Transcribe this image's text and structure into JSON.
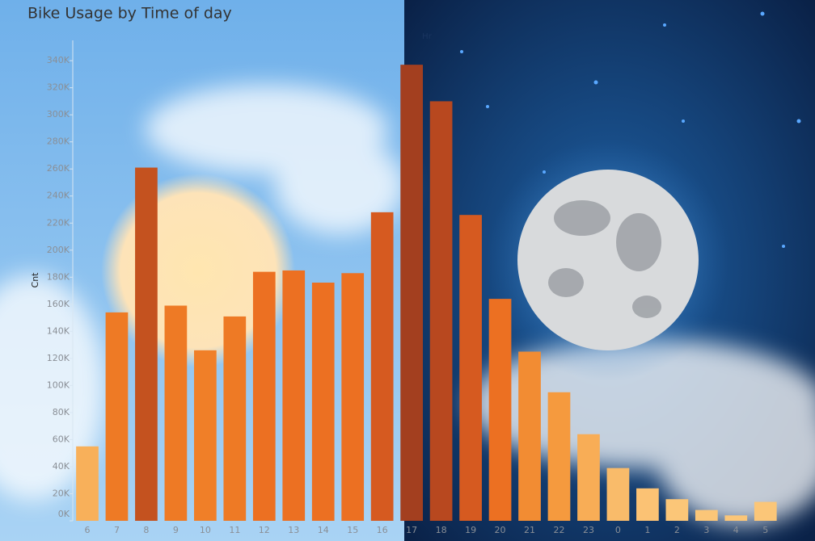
{
  "chart_data": {
    "type": "bar",
    "title": "Bike Usage by  Time of day",
    "x_label": "Hr",
    "y_label": "Cnt",
    "categories": [
      "6",
      "7",
      "8",
      "9",
      "10",
      "11",
      "12",
      "13",
      "14",
      "15",
      "16",
      "17",
      "18",
      "19",
      "20",
      "21",
      "22",
      "23",
      "0",
      "1",
      "2",
      "3",
      "4",
      "5"
    ],
    "values": [
      55000,
      154000,
      261000,
      159000,
      126000,
      151000,
      184000,
      185000,
      176000,
      183000,
      228000,
      337000,
      310000,
      226000,
      164000,
      125000,
      95000,
      64000,
      39000,
      24000,
      16000,
      8000,
      4000,
      14000
    ],
    "colors": [
      "#f8b05a",
      "#ee7a25",
      "#c4521f",
      "#ee7a25",
      "#f07f28",
      "#ee7a25",
      "#ec7022",
      "#ec7022",
      "#ec7022",
      "#ec7022",
      "#d65a20",
      "#a33f1f",
      "#b8481f",
      "#d65a20",
      "#ec7022",
      "#f28c33",
      "#f59a3e",
      "#f8ad56",
      "#f9bb6a",
      "#fbc274",
      "#fbc678",
      "#fbc678",
      "#fbc678",
      "#fbc678"
    ],
    "ylim": [
      0,
      355000
    ],
    "yticks": [
      {
        "value": 0,
        "label": "0K"
      },
      {
        "value": 20000,
        "label": "20K"
      },
      {
        "value": 40000,
        "label": "40K"
      },
      {
        "value": 60000,
        "label": "60K"
      },
      {
        "value": 80000,
        "label": "80K"
      },
      {
        "value": 100000,
        "label": "100K"
      },
      {
        "value": 120000,
        "label": "120K"
      },
      {
        "value": 140000,
        "label": "140K"
      },
      {
        "value": 160000,
        "label": "160K"
      },
      {
        "value": 180000,
        "label": "180K"
      },
      {
        "value": 200000,
        "label": "200K"
      },
      {
        "value": 220000,
        "label": "220K"
      },
      {
        "value": 240000,
        "label": "240K"
      },
      {
        "value": 260000,
        "label": "260K"
      },
      {
        "value": 280000,
        "label": "280K"
      },
      {
        "value": 300000,
        "label": "300K"
      },
      {
        "value": 320000,
        "label": "320K"
      },
      {
        "value": 340000,
        "label": "340K"
      }
    ],
    "grid": false
  }
}
